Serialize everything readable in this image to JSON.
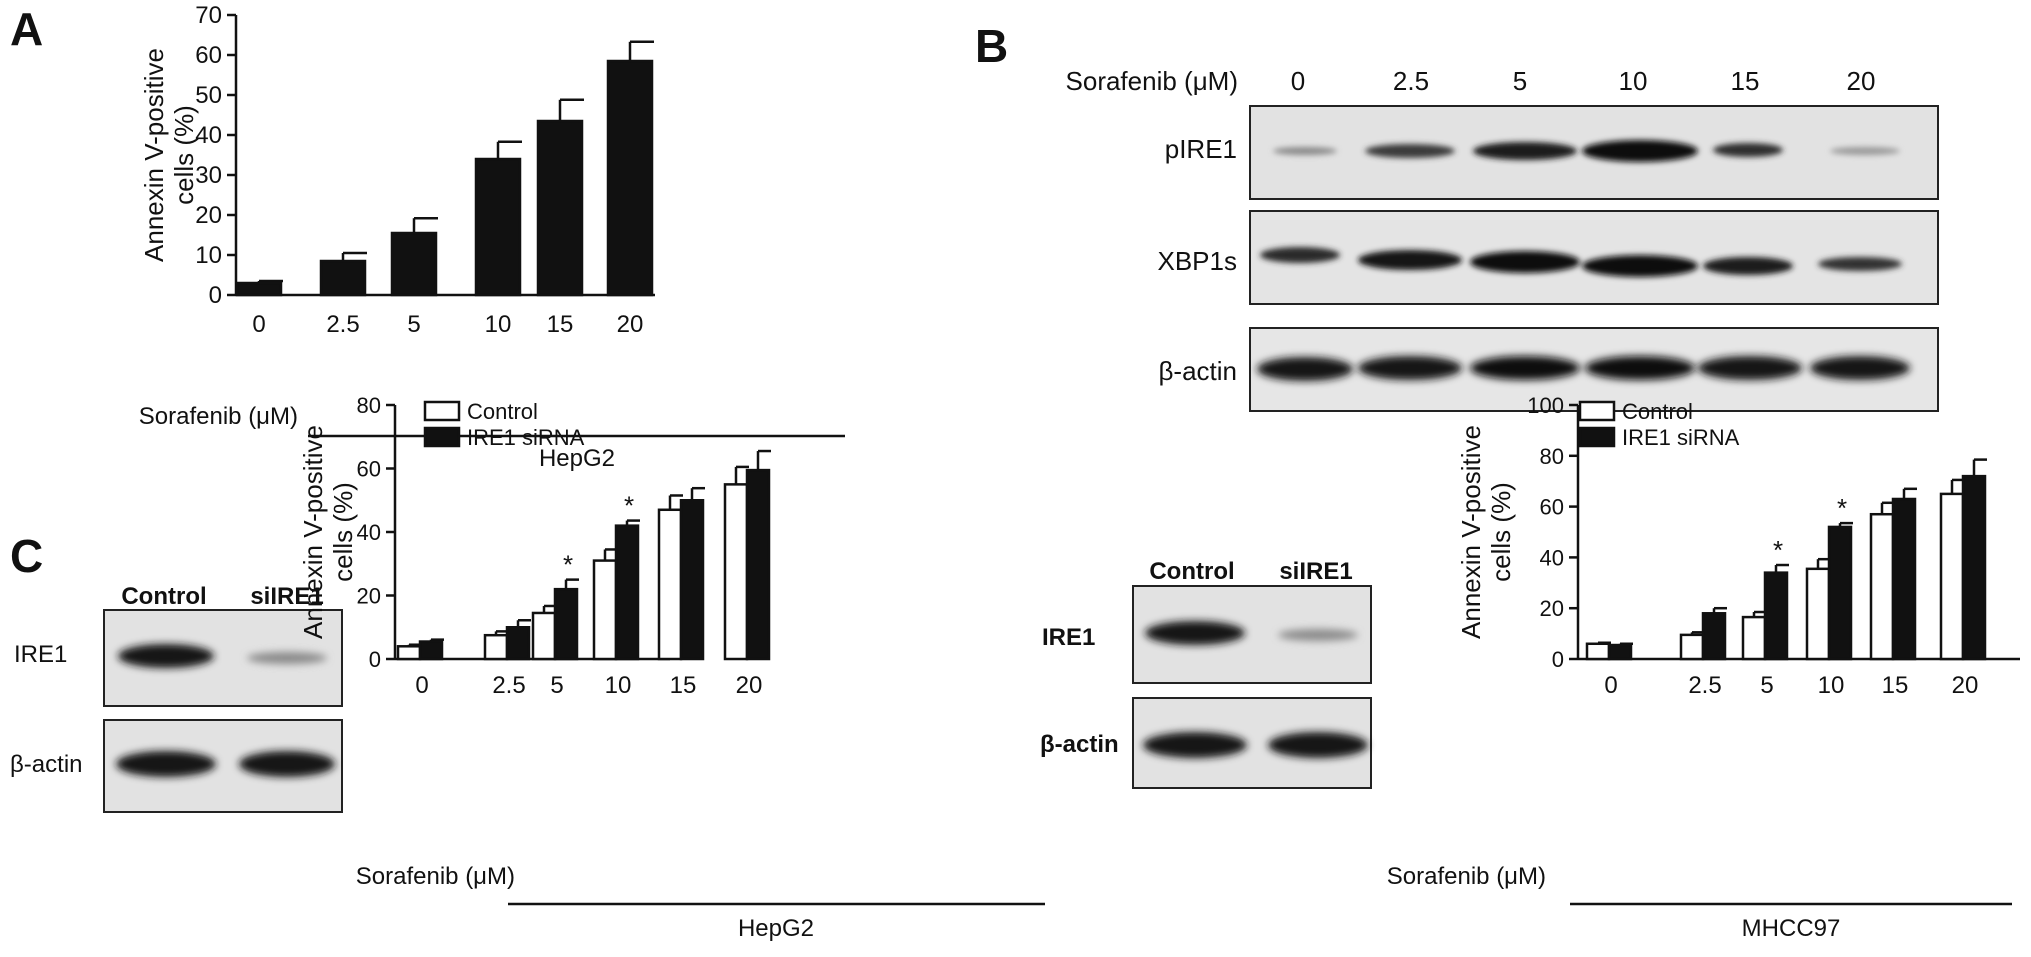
{
  "panel_labels": {
    "a": "A",
    "b": "B",
    "c": "C"
  },
  "colors": {
    "dark": "#111111",
    "white": "#ffffff",
    "blot_bg": "#d7d7d7"
  },
  "panel_a": {
    "dose_label": "Sorafenib (μM)",
    "cell_line": "HepG2"
  },
  "panel_b": {
    "dose_label": "Sorafenib (μM)",
    "doses": [
      "0",
      "2.5",
      "5",
      "10",
      "15",
      "20"
    ],
    "rows": [
      "pIRE1",
      "XBP1s",
      "β-actin"
    ]
  },
  "panel_c_blot_left": {
    "lanes": [
      "Control",
      "siIRE1"
    ],
    "rows": [
      "IRE1",
      "β-actin"
    ]
  },
  "panel_c_blot_right": {
    "lanes": [
      "Control",
      "siIRE1"
    ],
    "rows": [
      "IRE1",
      "β-actin"
    ]
  },
  "chart_c1_meta": {
    "dose_label": "Sorafenib (μM)",
    "cell_line": "HepG2"
  },
  "chart_c2_meta": {
    "dose_label": "Sorafenib (μM)",
    "cell_line": "MHCC97"
  },
  "chart_data": [
    {
      "id": "A",
      "type": "bar",
      "categories": [
        "0",
        "2.5",
        "5",
        "10",
        "15",
        "20"
      ],
      "series": [
        {
          "values": [
            3,
            8.5,
            15.5,
            34,
            43.5,
            58.5
          ],
          "errors": [
            0.5,
            2,
            3.7,
            4.3,
            5.3,
            4.8
          ]
        }
      ],
      "ylabel": "Annexin V-positive cells (%)",
      "ylim": [
        0,
        70
      ],
      "yticks": [
        0,
        10,
        20,
        30,
        40,
        50,
        60,
        70
      ],
      "grid": false
    },
    {
      "id": "C1",
      "type": "bar",
      "categories": [
        "0",
        "2.5",
        "5",
        "10",
        "15",
        "20"
      ],
      "series": [
        {
          "name": "Control",
          "values": [
            4,
            7.5,
            14.5,
            31,
            47,
            55
          ],
          "errors": [
            0.5,
            1.2,
            2.2,
            3.5,
            4.5,
            5.5
          ]
        },
        {
          "name": "IRE1 siRNA",
          "values": [
            5.5,
            10,
            22,
            42,
            50,
            59.5
          ],
          "errors": [
            0.6,
            2.2,
            3,
            1.6,
            3.8,
            6
          ]
        }
      ],
      "significance": [
        "",
        "",
        "*",
        "*",
        "",
        ""
      ],
      "ylabel": "Annexin V-positive cells (%)",
      "ylim": [
        0,
        80
      ],
      "yticks": [
        0,
        20,
        40,
        60,
        80
      ],
      "legend": "top-left",
      "grid": false
    },
    {
      "id": "C2",
      "type": "bar",
      "categories": [
        "0",
        "2.5",
        "5",
        "10",
        "15",
        "20"
      ],
      "series": [
        {
          "name": "Control",
          "values": [
            6,
            9.5,
            16.5,
            35.5,
            57,
            65
          ],
          "errors": [
            0.4,
            1,
            2,
            3.8,
            4.5,
            5.5
          ]
        },
        {
          "name": "IRE1 siRNA",
          "values": [
            5.5,
            18,
            34,
            52,
            63,
            72
          ],
          "errors": [
            0.5,
            2,
            3,
            1.5,
            4,
            6.5
          ]
        }
      ],
      "significance": [
        "",
        "",
        "*",
        "*",
        "",
        ""
      ],
      "ylabel": "Annexin V-positive cells (%)",
      "ylim": [
        0,
        100
      ],
      "yticks": [
        0,
        20,
        40,
        60,
        80,
        100
      ],
      "legend": "top-left",
      "grid": false
    }
  ]
}
